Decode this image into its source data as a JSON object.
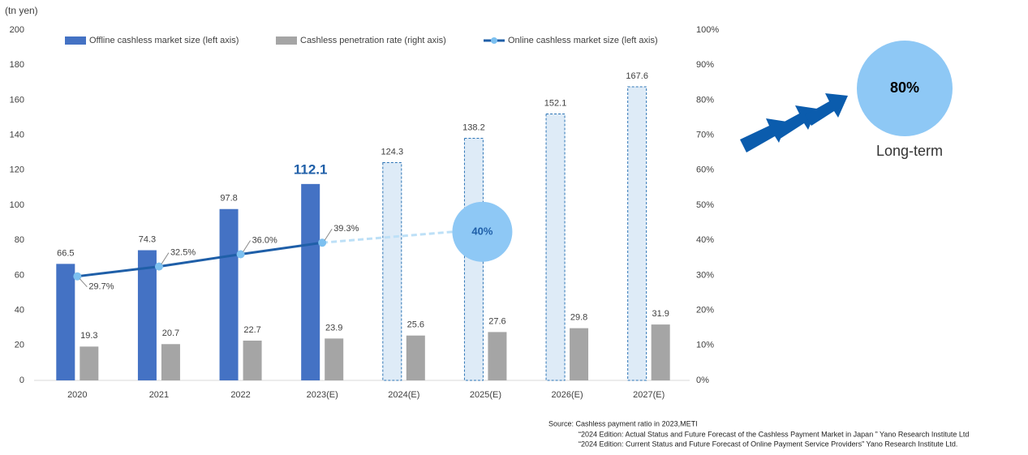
{
  "chart_data": {
    "type": "bar",
    "y_label": "(tn yen)",
    "categories": [
      "2020",
      "2021",
      "2022",
      "2023(E)",
      "2024(E)",
      "2025(E)",
      "2026(E)",
      "2027(E)"
    ],
    "series": [
      {
        "name": "Offline cashless market size (left axis)",
        "color": "#4472c4",
        "type": "bar",
        "values": [
          66.5,
          74.3,
          97.8,
          112.1,
          124.3,
          138.2,
          152.1,
          167.6
        ],
        "bar_styles": [
          "solid",
          "solid",
          "solid",
          "solid",
          "dashed",
          "dashed",
          "dashed",
          "dashed"
        ]
      },
      {
        "name": "Cashless penetration rate (right axis)",
        "color": "#a5a5a5",
        "type": "bar",
        "values": [
          19.3,
          20.7,
          22.7,
          23.9,
          25.6,
          27.6,
          29.8,
          31.9
        ]
      },
      {
        "name": "Online cashless market size (left axis)",
        "color": "#1f5fa8",
        "marker_color": "#7cc0f0",
        "type": "line",
        "axis": "y2",
        "values": [
          29.7,
          32.5,
          36.0,
          39.3,
          null,
          null,
          null,
          null
        ],
        "value_labels": [
          "29.7%",
          "32.5%",
          "36.0%",
          "39.3%",
          null,
          null,
          null,
          null
        ]
      }
    ],
    "ylim": [
      0,
      200
    ],
    "yticks": [
      0,
      20,
      40,
      60,
      80,
      100,
      120,
      140,
      160,
      180,
      200
    ],
    "y2lim": [
      0,
      100
    ],
    "y2ticks": [
      {
        "value": 0,
        "label": "0%"
      },
      {
        "value": 10,
        "label": "10%"
      },
      {
        "value": 20,
        "label": "20%"
      },
      {
        "value": 30,
        "label": "30%"
      },
      {
        "value": 40,
        "label": "40%"
      },
      {
        "value": 50,
        "label": "50%"
      },
      {
        "value": 60,
        "label": "60%"
      },
      {
        "value": 70,
        "label": "70%"
      },
      {
        "value": 80,
        "label": "80%"
      },
      {
        "value": 90,
        "label": "90%"
      },
      {
        "value": 100,
        "label": "100%"
      }
    ],
    "annotations": [
      "40%",
      "80%",
      "Long-term"
    ],
    "source": [
      "Source: Cashless payment ratio in 2023,METI",
      "“2024 Edition: Actual Status and Future Forecast of the Cashless Payment Market in Japan ”  Yano Research Institute Ltd",
      "“2024 Edition: Current Status and Future Forecast of Online Payment Service Providers”  Yano Research Institute Ltd."
    ]
  }
}
